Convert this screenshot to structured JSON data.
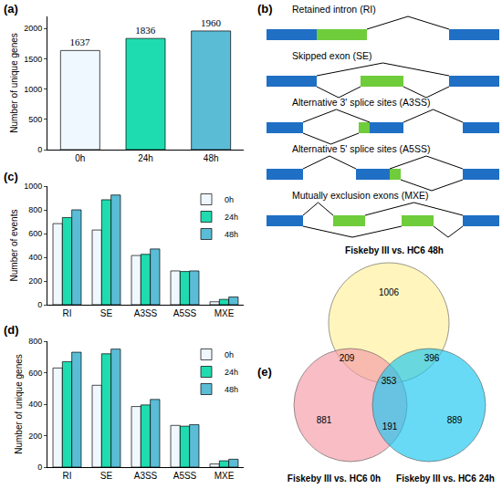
{
  "chart_data": [
    {
      "type": "bar",
      "panel_label": "(a)",
      "categories": [
        "0h",
        "24h",
        "48h"
      ],
      "values": [
        1637,
        1836,
        1960
      ],
      "colors": [
        "#f0f8ff",
        "#1fdcb0",
        "#5bbcd6"
      ],
      "ylabel": "Number of unique genes",
      "ylim": [
        0,
        2200
      ],
      "yticks": [
        0,
        500,
        1000,
        1500,
        2000
      ],
      "data_labels": true
    },
    {
      "type": "bar",
      "panel_label": "(c)",
      "categories": [
        "RI",
        "SE",
        "A3SS",
        "A5SS",
        "MXE"
      ],
      "series": [
        {
          "name": "0h",
          "color": "#f0f8ff",
          "values": [
            684,
            630,
            415,
            285,
            25
          ]
        },
        {
          "name": "24h",
          "color": "#1fdcb0",
          "values": [
            735,
            885,
            425,
            280,
            45
          ]
        },
        {
          "name": "48h",
          "color": "#5bbcd6",
          "values": [
            800,
            925,
            470,
            285,
            65
          ]
        }
      ],
      "ylabel": "Number of events",
      "ylim": [
        0,
        1000
      ],
      "yticks": [
        0,
        200,
        400,
        600,
        800,
        1000
      ],
      "legend": "upper right"
    },
    {
      "type": "bar",
      "panel_label": "(d)",
      "categories": [
        "RI",
        "SE",
        "A3SS",
        "A5SS",
        "MXE"
      ],
      "series": [
        {
          "name": "0h",
          "color": "#f0f8ff",
          "values": [
            630,
            520,
            385,
            265,
            20
          ]
        },
        {
          "name": "24h",
          "color": "#1fdcb0",
          "values": [
            670,
            720,
            395,
            260,
            40
          ]
        },
        {
          "name": "48h",
          "color": "#5bbcd6",
          "values": [
            730,
            750,
            430,
            270,
            50
          ]
        }
      ],
      "ylabel": "Number of unique genes",
      "ylim": [
        0,
        800
      ],
      "yticks": [
        0,
        200,
        400,
        600,
        800
      ],
      "legend": "upper right"
    }
  ],
  "diagram": {
    "panel_label": "(b)",
    "events": [
      "Retained intron (RI)",
      "Skipped exon (SE)",
      "Alternative 3' splice sites (A3SS)",
      "Alternative 5' splice sites (A5SS)",
      "Mutually exclusion exons (MXE)"
    ]
  },
  "venn": {
    "panel_label": "(e)",
    "sets": [
      {
        "label": "Fiskeby III vs. HC6 48h",
        "color": "#fff09a"
      },
      {
        "label": "Fiskeby III vs. HC6 0h",
        "color": "#f59aa6"
      },
      {
        "label": "Fiskeby III vs. HC6 24h",
        "color": "#19c6f0"
      }
    ],
    "regions": [
      {
        "sets": [
          0
        ],
        "value": 1006
      },
      {
        "sets": [
          0,
          1
        ],
        "value": 209
      },
      {
        "sets": [
          0,
          2
        ],
        "value": 396
      },
      {
        "sets": [
          0,
          1,
          2
        ],
        "value": 353
      },
      {
        "sets": [
          1
        ],
        "value": 881
      },
      {
        "sets": [
          1,
          2
        ],
        "value": 191
      },
      {
        "sets": [
          2
        ],
        "value": 889
      }
    ]
  }
}
